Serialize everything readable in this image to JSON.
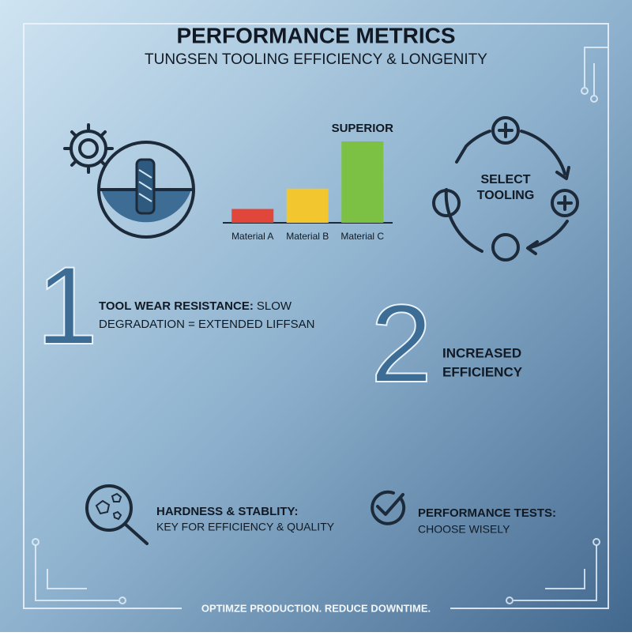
{
  "header": {
    "title": "PERFORMANCE METRICS",
    "subtitle": "TUNGSEN TOOLING EFFICIENCY & LONGENITY"
  },
  "bar_chart": {
    "type": "bar",
    "annotation": "SUPERIOR",
    "categories": [
      "Material A",
      "Material B",
      "Material C"
    ],
    "values": [
      17,
      42,
      100
    ],
    "colors": [
      "#e0463a",
      "#f2c62f",
      "#7cc143"
    ],
    "ylim": [
      0,
      100
    ]
  },
  "cycle": {
    "lines": [
      "SELECT",
      "TOOLING"
    ]
  },
  "point_1": {
    "number": "1",
    "heading": "TOOL WEAR RESISTANCE:",
    "lines": [
      "SLOW",
      "DEGRADATION = EXTENDED LIFFSAN"
    ]
  },
  "point_2": {
    "number": "2",
    "lines": [
      "INCREASED",
      "EFFICIENCY"
    ]
  },
  "features": [
    {
      "heading": "HARDNESS & STABLITY:",
      "text": "KEY FOR EFFICIENCY & QUALITY"
    },
    {
      "heading": "PERFORMANCE TESTS:",
      "text": "CHOOSE WISELY"
    }
  ],
  "footer": "OPTIMZE PRODUCTION. REDUCE DOWNTIME."
}
